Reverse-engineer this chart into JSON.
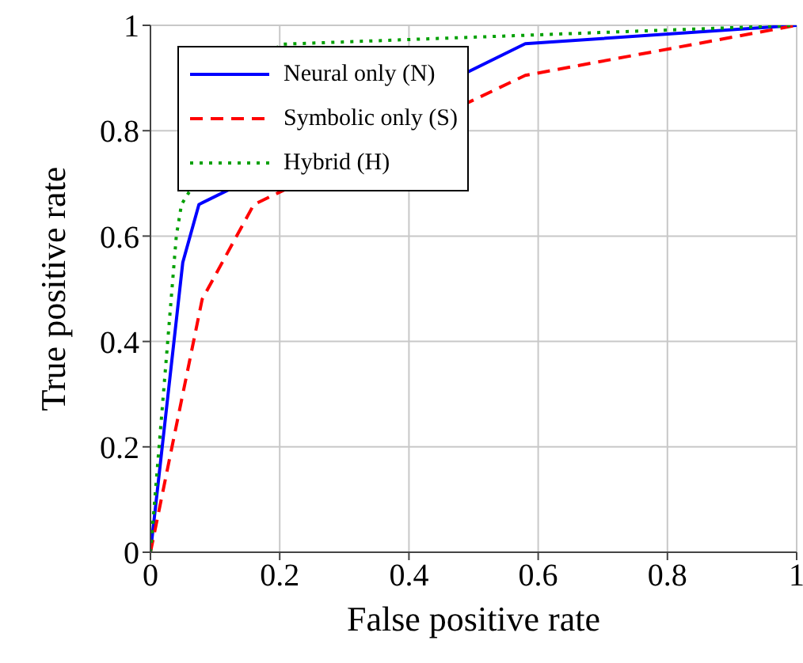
{
  "chart_data": {
    "type": "line",
    "xlabel": "False positive rate",
    "ylabel": "True positive rate",
    "xlim": [
      0,
      1
    ],
    "ylim": [
      0,
      1
    ],
    "xticks": [
      0,
      0.2,
      0.4,
      0.6,
      0.8,
      1
    ],
    "yticks": [
      0,
      0.2,
      0.4,
      0.6,
      0.8,
      1
    ],
    "grid": true,
    "legend": "top left",
    "marker": "none",
    "series": [
      {
        "name": "Neural only (N)",
        "color": "#0000ff",
        "line_style": "solid",
        "x": [
          0,
          0.05,
          0.075,
          0.58,
          1
        ],
        "values": [
          0,
          0.55,
          0.66,
          0.965,
          1
        ]
      },
      {
        "name": "Symbolic only (S)",
        "color": "#ff0000",
        "line_style": "dashed",
        "x": [
          0,
          0.08,
          0.16,
          0.58,
          1
        ],
        "values": [
          0,
          0.48,
          0.66,
          0.905,
          1
        ]
      },
      {
        "name": "Hybrid (H)",
        "color": "#00a000",
        "line_style": "dotted",
        "x": [
          0,
          0.04,
          0.048,
          0.2,
          1
        ],
        "values": [
          0,
          0.6,
          0.66,
          0.964,
          1
        ]
      }
    ]
  }
}
